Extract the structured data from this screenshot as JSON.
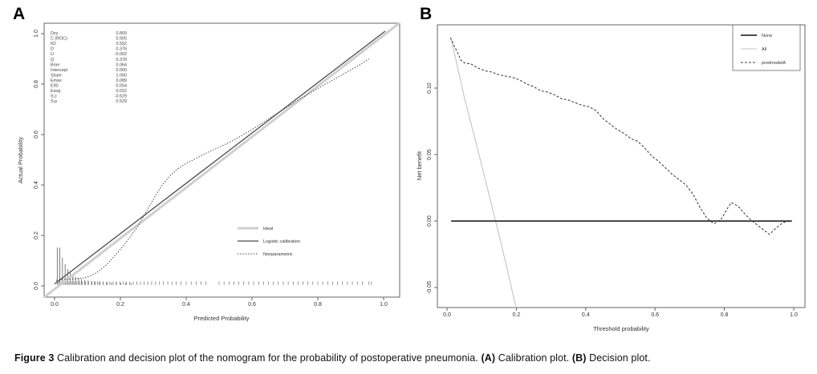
{
  "panels": {
    "a": {
      "letter": "A"
    },
    "b": {
      "letter": "B"
    }
  },
  "caption": {
    "label": "Figure 3",
    "text": "Calibration and decision plot of the nomogram for the probability of postoperative pneumonia.",
    "a_label": "(A)",
    "a_text": "Calibration plot.",
    "b_label": "(B)",
    "b_text": "Decision plot."
  },
  "colors": {
    "ideal_line": "#cfcfcf",
    "dark_line": "#3f3f3f",
    "all_line": "#c4c4c4",
    "axis": "#555555",
    "text": "#333333"
  },
  "chart_data": [
    {
      "id": "calibration-plot",
      "type": "line",
      "title": "",
      "xlabel": "Predicted Probability",
      "ylabel": "Actual Probability",
      "xlim": [
        -0.04,
        1.05
      ],
      "ylim": [
        -0.05,
        1.05
      ],
      "grid": false,
      "x_ticks": [
        {
          "v": 0,
          "label": "0.0"
        },
        {
          "v": 0.2,
          "label": "0.2"
        },
        {
          "v": 0.4,
          "label": "0.4"
        },
        {
          "v": 0.6,
          "label": "0.6"
        },
        {
          "v": 0.8,
          "label": "0.8"
        },
        {
          "v": 1,
          "label": "1.0"
        }
      ],
      "y_ticks": [
        {
          "v": 0,
          "label": "0.0"
        },
        {
          "v": 0.2,
          "label": "0.2"
        },
        {
          "v": 0.4,
          "label": "0.4"
        },
        {
          "v": 0.6,
          "label": "0.6"
        },
        {
          "v": 0.8,
          "label": "0.8"
        },
        {
          "v": 1,
          "label": "1.0"
        }
      ],
      "stats": [
        {
          "label": "Dxy",
          "value": "0.809"
        },
        {
          "label": "C (ROC)",
          "value": "0.905"
        },
        {
          "label": "R2",
          "value": "0.552"
        },
        {
          "label": "D",
          "value": "0.376"
        },
        {
          "label": "U",
          "value": "-0.002"
        },
        {
          "label": "Q",
          "value": "0.378"
        },
        {
          "label": "Brier",
          "value": "0.064"
        },
        {
          "label": "Intercept",
          "value": "0.000"
        },
        {
          "label": "Slope",
          "value": "1.000"
        },
        {
          "label": "Emax",
          "value": "0.089"
        },
        {
          "label": "E90",
          "value": "0.054"
        },
        {
          "label": "Eavg",
          "value": "0.022"
        },
        {
          "label": "S:z",
          "value": "-0.629"
        },
        {
          "label": "S:p",
          "value": "0.529"
        }
      ],
      "series": [
        {
          "name": "Ideal",
          "style": "solid",
          "color": "#cfcfcf",
          "width": 3,
          "points": [
            [
              -0.033,
              -0.046
            ],
            [
              1.048,
              1.042
            ]
          ]
        },
        {
          "name": "Logistic calibration",
          "style": "solid",
          "color": "#4a4a4a",
          "width": 1.3,
          "points": [
            [
              0,
              0.008
            ],
            [
              1.005,
              1.01
            ]
          ]
        },
        {
          "name": "Nonparametric",
          "style": "dotted",
          "color": "#333333",
          "width": 1,
          "points": [
            [
              0.005,
              0.022
            ],
            [
              0.03,
              0.026
            ],
            [
              0.06,
              0.028
            ],
            [
              0.09,
              0.032
            ],
            [
              0.11,
              0.04
            ],
            [
              0.13,
              0.055
            ],
            [
              0.15,
              0.075
            ],
            [
              0.17,
              0.1
            ],
            [
              0.19,
              0.13
            ],
            [
              0.21,
              0.16
            ],
            [
              0.23,
              0.195
            ],
            [
              0.25,
              0.23
            ],
            [
              0.27,
              0.275
            ],
            [
              0.29,
              0.32
            ],
            [
              0.31,
              0.365
            ],
            [
              0.33,
              0.405
            ],
            [
              0.35,
              0.435
            ],
            [
              0.37,
              0.46
            ],
            [
              0.39,
              0.478
            ],
            [
              0.41,
              0.492
            ],
            [
              0.43,
              0.505
            ],
            [
              0.45,
              0.52
            ],
            [
              0.48,
              0.538
            ],
            [
              0.51,
              0.556
            ],
            [
              0.54,
              0.575
            ],
            [
              0.57,
              0.597
            ],
            [
              0.6,
              0.62
            ],
            [
              0.63,
              0.645
            ],
            [
              0.66,
              0.67
            ],
            [
              0.69,
              0.695
            ],
            [
              0.72,
              0.72
            ],
            [
              0.75,
              0.744
            ],
            [
              0.78,
              0.768
            ],
            [
              0.81,
              0.79
            ],
            [
              0.84,
              0.812
            ],
            [
              0.87,
              0.834
            ],
            [
              0.9,
              0.856
            ],
            [
              0.93,
              0.878
            ],
            [
              0.955,
              0.9
            ]
          ]
        }
      ],
      "spikes": [
        [
          0.008,
          0.148
        ],
        [
          0.016,
          0.148
        ],
        [
          0.024,
          0.108
        ],
        [
          0.032,
          0.082
        ],
        [
          0.04,
          0.062
        ],
        [
          0.048,
          0.048
        ],
        [
          0.056,
          0.038
        ],
        [
          0.064,
          0.032
        ],
        [
          0.073,
          0.027
        ],
        [
          0.082,
          0.023
        ],
        [
          0.092,
          0.02
        ],
        [
          0.102,
          0.017
        ],
        [
          0.113,
          0.015
        ],
        [
          0.124,
          0.013
        ],
        [
          0.136,
          0.012
        ],
        [
          0.148,
          0.011
        ],
        [
          0.16,
          0.01
        ],
        [
          0.173,
          0.009
        ],
        [
          0.187,
          0.009
        ],
        [
          0.201,
          0.008
        ],
        [
          0.216,
          0.008
        ],
        [
          0.232,
          0.008
        ]
      ],
      "rug": [
        0.012,
        0.02,
        0.028,
        0.036,
        0.044,
        0.052,
        0.06,
        0.068,
        0.076,
        0.085,
        0.094,
        0.103,
        0.112,
        0.121,
        0.13,
        0.139,
        0.148,
        0.158,
        0.168,
        0.178,
        0.188,
        0.198,
        0.208,
        0.218,
        0.228,
        0.239,
        0.25,
        0.261,
        0.272,
        0.283,
        0.295,
        0.307,
        0.319,
        0.331,
        0.344,
        0.357,
        0.37,
        0.384,
        0.4,
        0.415,
        0.43,
        0.445,
        0.46,
        0.5,
        0.515,
        0.53,
        0.545,
        0.56,
        0.575,
        0.59,
        0.605,
        0.62,
        0.635,
        0.65,
        0.665,
        0.68,
        0.695,
        0.71,
        0.725,
        0.74,
        0.755,
        0.77,
        0.785,
        0.8,
        0.815,
        0.83,
        0.845,
        0.86,
        0.875,
        0.89,
        0.905,
        0.92,
        0.935,
        0.955,
        0.963
      ],
      "legend": [
        {
          "label": "Ideal",
          "style": "solid",
          "color": "#cfcfcf",
          "width": 3
        },
        {
          "label": "Logistic calibration",
          "style": "solid",
          "color": "#4a4a4a",
          "width": 1.3
        },
        {
          "label": "Nonparametric",
          "style": "dotted",
          "color": "#333333",
          "width": 1
        }
      ],
      "legend_position": "inside-lower-right",
      "legend_box": false
    },
    {
      "id": "decision-plot",
      "type": "line",
      "title": "",
      "xlabel": "Threshold probability",
      "ylabel": "Net benefit",
      "xlim": [
        -0.03,
        1.03
      ],
      "ylim": [
        -0.065,
        0.148
      ],
      "grid": false,
      "x_ticks": [
        {
          "v": 0,
          "label": "0.0"
        },
        {
          "v": 0.2,
          "label": "0.2"
        },
        {
          "v": 0.4,
          "label": "0.4"
        },
        {
          "v": 0.6,
          "label": "0.6"
        },
        {
          "v": 0.8,
          "label": "0.8"
        },
        {
          "v": 1,
          "label": "1.0"
        }
      ],
      "y_ticks": [
        {
          "v": -0.05,
          "label": "-0.05"
        },
        {
          "v": 0,
          "label": "0.00"
        },
        {
          "v": 0.05,
          "label": "0.05"
        },
        {
          "v": 0.1,
          "label": "0.10"
        }
      ],
      "stats": [],
      "series": [
        {
          "name": "All",
          "style": "solid",
          "color": "#c4c4c4",
          "width": 1.1,
          "points": [
            [
              0.012,
              0.137
            ],
            [
              0.05,
              0.093
            ],
            [
              0.1,
              0.042
            ],
            [
              0.14,
              0
            ],
            [
              0.17,
              -0.032
            ],
            [
              0.198,
              -0.064
            ]
          ]
        },
        {
          "name": "None",
          "style": "solid",
          "color": "#333333",
          "width": 1.8,
          "points": [
            [
              0.012,
              0
            ],
            [
              0.995,
              0
            ]
          ]
        },
        {
          "name": "predmodelA",
          "style": "dashed",
          "color": "#2f2f2f",
          "width": 1,
          "points": [
            [
              0.01,
              0.138
            ],
            [
              0.02,
              0.132
            ],
            [
              0.03,
              0.127
            ],
            [
              0.04,
              0.121
            ],
            [
              0.05,
              0.119
            ],
            [
              0.07,
              0.118
            ],
            [
              0.09,
              0.115
            ],
            [
              0.11,
              0.113
            ],
            [
              0.13,
              0.112
            ],
            [
              0.15,
              0.11
            ],
            [
              0.17,
              0.109
            ],
            [
              0.19,
              0.108
            ],
            [
              0.21,
              0.106
            ],
            [
              0.23,
              0.103
            ],
            [
              0.25,
              0.101
            ],
            [
              0.27,
              0.098
            ],
            [
              0.29,
              0.097
            ],
            [
              0.31,
              0.095
            ],
            [
              0.33,
              0.092
            ],
            [
              0.35,
              0.091
            ],
            [
              0.37,
              0.089
            ],
            [
              0.39,
              0.087
            ],
            [
              0.41,
              0.086
            ],
            [
              0.43,
              0.083
            ],
            [
              0.45,
              0.077
            ],
            [
              0.47,
              0.073
            ],
            [
              0.49,
              0.069
            ],
            [
              0.51,
              0.066
            ],
            [
              0.53,
              0.062
            ],
            [
              0.55,
              0.06
            ],
            [
              0.57,
              0.055
            ],
            [
              0.59,
              0.049
            ],
            [
              0.61,
              0.045
            ],
            [
              0.63,
              0.04
            ],
            [
              0.65,
              0.035
            ],
            [
              0.67,
              0.031
            ],
            [
              0.69,
              0.027
            ],
            [
              0.71,
              0.02
            ],
            [
              0.73,
              0.01
            ],
            [
              0.75,
              0.002
            ],
            [
              0.77,
              -0.002
            ],
            [
              0.79,
              0.001
            ],
            [
              0.81,
              0.01
            ],
            [
              0.82,
              0.014
            ],
            [
              0.84,
              0.011
            ],
            [
              0.86,
              0.005
            ],
            [
              0.88,
              0
            ],
            [
              0.9,
              -0.004
            ],
            [
              0.92,
              -0.008
            ],
            [
              0.93,
              -0.01
            ],
            [
              0.95,
              -0.005
            ],
            [
              0.97,
              -0.001
            ],
            [
              0.99,
              0
            ]
          ]
        }
      ],
      "spikes": [],
      "rug": [],
      "legend": [
        {
          "label": "None",
          "style": "solid",
          "color": "#333333",
          "width": 1.8
        },
        {
          "label": "All",
          "style": "solid",
          "color": "#c4c4c4",
          "width": 1.1
        },
        {
          "label": "predmodelA",
          "style": "dashed",
          "color": "#2f2f2f",
          "width": 1
        }
      ],
      "legend_position": "inside-upper-right",
      "legend_box": true
    }
  ]
}
